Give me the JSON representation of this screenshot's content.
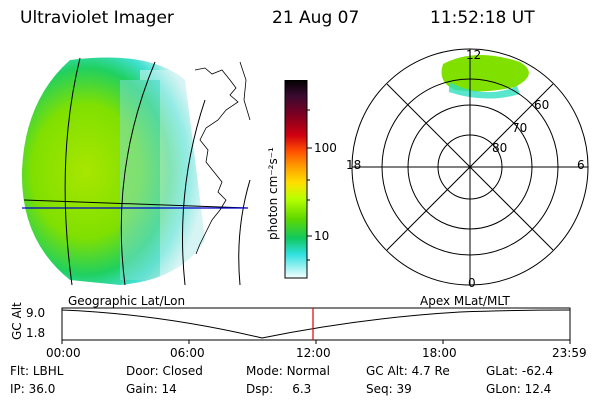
{
  "header": {
    "instrument": "Ultraviolet Imager",
    "date": "21 Aug 07",
    "time": "11:52:18 UT"
  },
  "colorbar": {
    "label": "photon cm⁻²s⁻¹",
    "ticks": [
      "100",
      "10"
    ],
    "colors": [
      "#000000",
      "#2a0a2a",
      "#4a0a3a",
      "#800020",
      "#c00000",
      "#e83030",
      "#ff6000",
      "#ffa000",
      "#ffe000",
      "#c8ff00",
      "#7ce000",
      "#20d040",
      "#00d0a0",
      "#30e0e0",
      "#a0f0f0",
      "#ffffff"
    ]
  },
  "polar_plot": {
    "mlt_labels": [
      "12",
      "18",
      "6",
      "0"
    ],
    "lat_labels": [
      "60",
      "70",
      "80"
    ]
  },
  "timeline": {
    "left_label": "Geographic Lat/Lon",
    "right_label": "Apex MLat/MLT",
    "axis_title": "GC Alt",
    "y_ticks": [
      "9.0",
      "1.8"
    ],
    "x_ticks": [
      "00:00",
      "06:00",
      "12:00",
      "18:00",
      "23:59"
    ]
  },
  "status": {
    "filter_label": "Flt:",
    "filter_value": "LBHL",
    "door_label": "Door:",
    "door_value": "Closed",
    "mode_label": "Mode:",
    "mode_value": "Normal",
    "gcalt_label": "GC Alt:",
    "gcalt_value": "4.7 Re",
    "glat_label": "GLat:",
    "glat_value": "-62.4",
    "ip_label": "IP:",
    "ip_value": "36.0",
    "gain_label": "Gain:",
    "gain_value": "14",
    "dsp_label": "Dsp:",
    "dsp_value": "6.3",
    "seq_label": "Seq:",
    "seq_value": "39",
    "glon_label": "GLon:",
    "glon_value": "12.4"
  }
}
